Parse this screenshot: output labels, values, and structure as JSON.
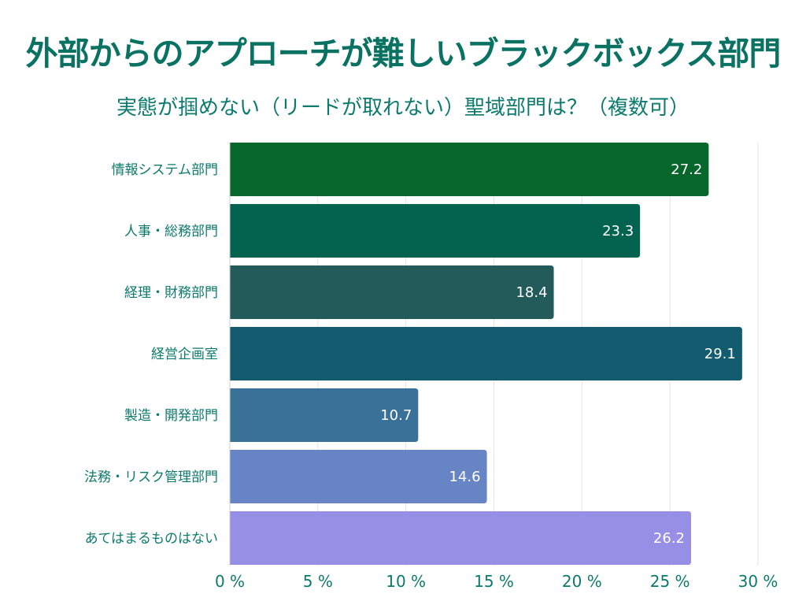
{
  "chart_data": {
    "type": "bar",
    "orientation": "horizontal",
    "title": "外部からのアプローチが難しいブラックボックス部門",
    "subtitle": "実態が掴めない（リードが取れない）聖域部門は？（複数可）",
    "categories": [
      "情報システム部門",
      "人事・総務部門",
      "経理・財務部門",
      "経営企画室",
      "製造・開発部門",
      "法務・リスク管理部門",
      "あてはまるものはない"
    ],
    "values": [
      27.2,
      23.3,
      18.4,
      29.1,
      10.7,
      14.6,
      26.2
    ],
    "value_labels": [
      "27.2",
      "23.3",
      "18.4",
      "29.1",
      "10.7",
      "14.6",
      "26.2"
    ],
    "colors": [
      "#07672a",
      "#03634f",
      "#235a5a",
      "#135b6e",
      "#3a7198",
      "#6785c4",
      "#978ee6"
    ],
    "xlim": [
      0,
      30
    ],
    "xticks": [
      0,
      5,
      10,
      15,
      20,
      25,
      30
    ],
    "xtick_labels": [
      "0 %",
      "5 %",
      "10 %",
      "15 %",
      "20 %",
      "25 %",
      "30 %"
    ],
    "grid": "vertical",
    "text_color": "#0c7a6c"
  }
}
